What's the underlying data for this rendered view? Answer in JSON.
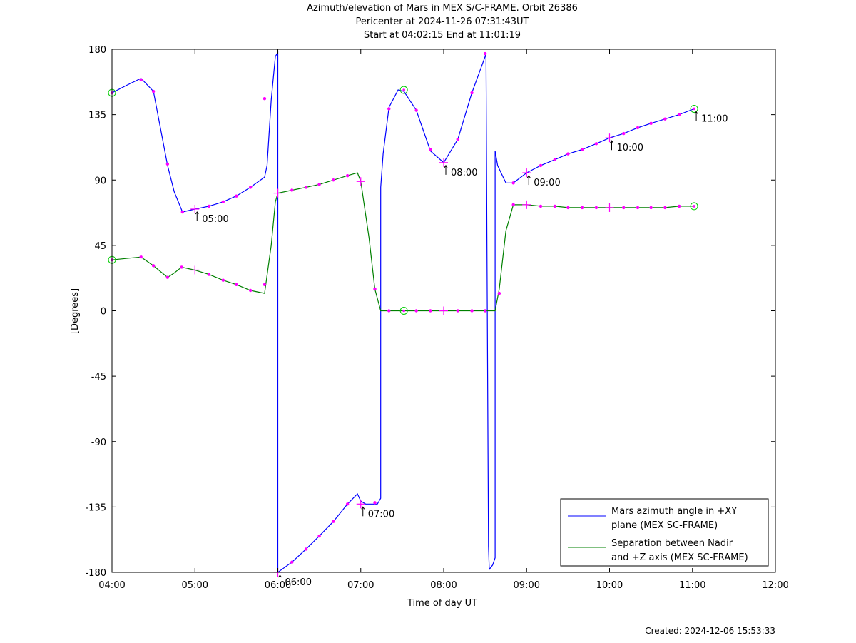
{
  "title_lines": [
    "Azimuth/elevation of Mars in MEX S/C-FRAME.  Orbit 26386",
    "Pericenter at 2024-11-26 07:31:43UT",
    "Start at 04:02:15 End at 11:01:19"
  ],
  "created": "Created: 2024-12-06 15:53:33",
  "chart_data": {
    "type": "line",
    "xlabel": "Time of day UT",
    "ylabel": "[Degrees]",
    "xlim": [
      4.0,
      12.0
    ],
    "ylim": [
      -180,
      180
    ],
    "xticks": [
      4,
      5,
      6,
      7,
      8,
      9,
      10,
      11,
      12
    ],
    "xtick_labels": [
      "04:00",
      "05:00",
      "06:00",
      "07:00",
      "08:00",
      "09:00",
      "10:00",
      "11:00",
      "12:00"
    ],
    "yticks": [
      180,
      135,
      90,
      45,
      0,
      -45,
      -90,
      -135,
      -180
    ],
    "ytick_labels": [
      "180",
      "135",
      "90",
      "45",
      "0",
      "-45",
      "-90",
      "-135",
      "-180"
    ],
    "grid": false,
    "legend_position": "bottom-right",
    "series": [
      {
        "name": "Mars azimuth angle in +XY plane (MEX SC-FRAME)",
        "legend_lines": [
          "Mars azimuth angle in +XY",
          "plane (MEX SC-FRAME)"
        ],
        "color": "#0000ff",
        "x": [
          4.0,
          4.17,
          4.35,
          4.5,
          4.67,
          4.75,
          4.85,
          5.0,
          5.17,
          5.34,
          5.5,
          5.67,
          5.84,
          5.87,
          5.92,
          5.97,
          6.0,
          6.0,
          6.17,
          6.34,
          6.5,
          6.67,
          6.84,
          6.96,
          7.0,
          7.06,
          7.2,
          7.24,
          7.24,
          7.27,
          7.34,
          7.45,
          7.52,
          7.67,
          7.84,
          8.0,
          8.17,
          8.34,
          8.5,
          8.51,
          8.54,
          8.55,
          8.59,
          8.62,
          8.62,
          8.65,
          8.75,
          8.84,
          9.0,
          9.17,
          9.34,
          9.5,
          9.67,
          9.84,
          10.0,
          10.17,
          10.34,
          10.5,
          10.67,
          10.84,
          11.02
        ],
        "y": [
          150,
          155,
          160,
          151,
          100,
          82,
          68,
          70,
          72,
          75,
          79,
          85,
          92,
          100,
          145,
          175,
          178,
          -180,
          -173,
          -164,
          -155,
          -145,
          -133,
          -126,
          -131,
          -133,
          -133,
          -129,
          85,
          108,
          140,
          152,
          151,
          138,
          110,
          102,
          118,
          150,
          175,
          178,
          -162,
          -178,
          -175,
          -170,
          110,
          100,
          88,
          88,
          95,
          100,
          104,
          108,
          111,
          115,
          119,
          122,
          126,
          129,
          132,
          135,
          139
        ],
        "markers": [
          [
            4.0,
            150,
            "circle"
          ],
          [
            4.35,
            159,
            "dot"
          ],
          [
            4.5,
            151,
            "dot"
          ],
          [
            4.67,
            101,
            "dot"
          ],
          [
            4.85,
            68,
            "dot"
          ],
          [
            5.0,
            70,
            "cross"
          ],
          [
            5.17,
            72,
            "dot"
          ],
          [
            5.34,
            75,
            "dot"
          ],
          [
            5.5,
            79,
            "dot"
          ],
          [
            5.67,
            85,
            "dot"
          ],
          [
            5.84,
            146,
            "dot"
          ],
          [
            6.0,
            -180,
            "cross"
          ],
          [
            6.17,
            -173,
            "dot"
          ],
          [
            6.34,
            -164,
            "dot"
          ],
          [
            6.5,
            -155,
            "dot"
          ],
          [
            6.67,
            -145,
            "dot"
          ],
          [
            6.84,
            -133,
            "dot"
          ],
          [
            7.0,
            -133,
            "cross"
          ],
          [
            7.17,
            -132,
            "dot"
          ],
          [
            7.34,
            139,
            "dot"
          ],
          [
            7.52,
            152,
            "circle"
          ],
          [
            7.67,
            138,
            "dot"
          ],
          [
            7.84,
            111,
            "dot"
          ],
          [
            8.0,
            102,
            "cross"
          ],
          [
            8.17,
            118,
            "dot"
          ],
          [
            8.34,
            150,
            "dot"
          ],
          [
            8.5,
            177,
            "dot"
          ],
          [
            8.84,
            88,
            "dot"
          ],
          [
            9.0,
            95,
            "cross"
          ],
          [
            9.17,
            100,
            "dot"
          ],
          [
            9.34,
            104,
            "dot"
          ],
          [
            9.5,
            108,
            "dot"
          ],
          [
            9.67,
            111,
            "dot"
          ],
          [
            9.84,
            115,
            "dot"
          ],
          [
            10.0,
            119,
            "cross"
          ],
          [
            10.17,
            122,
            "dot"
          ],
          [
            10.34,
            126,
            "dot"
          ],
          [
            10.5,
            129,
            "dot"
          ],
          [
            10.67,
            132,
            "dot"
          ],
          [
            10.84,
            135,
            "dot"
          ],
          [
            11.02,
            139,
            "circle"
          ]
        ]
      },
      {
        "name": "Separation between Nadir and +Z axis (MEX SC-FRAME)",
        "legend_lines": [
          "Separation between Nadir",
          "and +Z axis (MEX SC-FRAME)"
        ],
        "color": "#008000",
        "x": [
          4.0,
          4.17,
          4.35,
          4.5,
          4.67,
          4.75,
          4.84,
          5.0,
          5.17,
          5.34,
          5.5,
          5.67,
          5.84,
          5.92,
          5.97,
          6.0,
          6.17,
          6.34,
          6.5,
          6.67,
          6.84,
          6.96,
          7.0,
          7.1,
          7.17,
          7.24,
          7.27,
          7.34,
          7.5,
          7.67,
          7.84,
          8.0,
          8.17,
          8.34,
          8.5,
          8.62,
          8.67,
          8.75,
          8.84,
          9.0,
          9.17,
          9.34,
          9.5,
          9.67,
          9.84,
          10.0,
          10.17,
          10.34,
          10.5,
          10.67,
          10.84,
          11.02
        ],
        "y": [
          35,
          36,
          37,
          31,
          23,
          26,
          30,
          28,
          25,
          21,
          18,
          14,
          12,
          45,
          75,
          81,
          83,
          85,
          87,
          90,
          93,
          95,
          89,
          50,
          15,
          0,
          0,
          0,
          0,
          0,
          0,
          0,
          0,
          0,
          0,
          0,
          15,
          55,
          73,
          73,
          72,
          72,
          71,
          71,
          71,
          71,
          71,
          71,
          71,
          71,
          72,
          72
        ],
        "markers": [
          [
            4.0,
            35,
            "circle"
          ],
          [
            4.35,
            37,
            "dot"
          ],
          [
            4.5,
            31,
            "dot"
          ],
          [
            4.67,
            23,
            "dot"
          ],
          [
            4.84,
            30,
            "dot"
          ],
          [
            5.0,
            28,
            "cross"
          ],
          [
            5.17,
            25,
            "dot"
          ],
          [
            5.34,
            21,
            "dot"
          ],
          [
            5.5,
            18,
            "dot"
          ],
          [
            5.67,
            14,
            "dot"
          ],
          [
            5.84,
            18,
            "dot"
          ],
          [
            6.0,
            81,
            "cross"
          ],
          [
            6.17,
            83,
            "dot"
          ],
          [
            6.34,
            85,
            "dot"
          ],
          [
            6.5,
            87,
            "dot"
          ],
          [
            6.67,
            90,
            "dot"
          ],
          [
            6.84,
            93,
            "dot"
          ],
          [
            7.0,
            89,
            "cross"
          ],
          [
            7.17,
            15,
            "dot"
          ],
          [
            7.34,
            0,
            "dot"
          ],
          [
            7.52,
            0,
            "circle"
          ],
          [
            7.67,
            0,
            "dot"
          ],
          [
            7.84,
            0,
            "dot"
          ],
          [
            8.0,
            0,
            "cross"
          ],
          [
            8.17,
            0,
            "dot"
          ],
          [
            8.34,
            0,
            "dot"
          ],
          [
            8.5,
            0,
            "dot"
          ],
          [
            8.67,
            12,
            "dot"
          ],
          [
            8.84,
            73,
            "dot"
          ],
          [
            9.0,
            73,
            "cross"
          ],
          [
            9.17,
            72,
            "dot"
          ],
          [
            9.34,
            72,
            "dot"
          ],
          [
            9.5,
            71,
            "dot"
          ],
          [
            9.67,
            71,
            "dot"
          ],
          [
            9.84,
            71,
            "dot"
          ],
          [
            10.0,
            71,
            "cross"
          ],
          [
            10.17,
            71,
            "dot"
          ],
          [
            10.34,
            71,
            "dot"
          ],
          [
            10.5,
            71,
            "dot"
          ],
          [
            10.67,
            71,
            "dot"
          ],
          [
            10.84,
            72,
            "dot"
          ],
          [
            11.02,
            72,
            "circle"
          ]
        ]
      }
    ],
    "annotations": [
      {
        "text": "05:00",
        "x": 5.0,
        "y": 70
      },
      {
        "text": "06:00",
        "x": 6.0,
        "y": -180
      },
      {
        "text": "07:00",
        "x": 7.0,
        "y": -133
      },
      {
        "text": "08:00",
        "x": 8.0,
        "y": 102
      },
      {
        "text": "09:00",
        "x": 9.0,
        "y": 95
      },
      {
        "text": "10:00",
        "x": 10.0,
        "y": 119
      },
      {
        "text": "11:00",
        "x": 11.02,
        "y": 139
      }
    ],
    "marker_color": "#ff00ff",
    "circle_color": "#00cc00"
  }
}
